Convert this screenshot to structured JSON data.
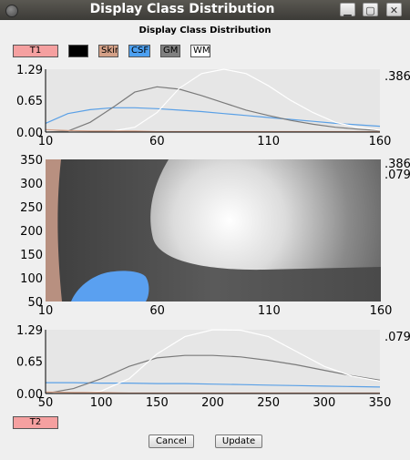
{
  "window": {
    "title": "Display Class Distribution"
  },
  "header": {
    "title": "Display Class Distribution"
  },
  "top_selector": {
    "label": "T1",
    "color": "#f5a0a0"
  },
  "bottom_selector": {
    "label": "T2",
    "color": "#f5a0a0"
  },
  "classes": [
    {
      "label": "",
      "color": "#000000"
    },
    {
      "label": "Skin",
      "color": "#d4a087"
    },
    {
      "label": "CSF",
      "color": "#4da0f0"
    },
    {
      "label": "GM",
      "color": "#808080"
    },
    {
      "label": "WM",
      "color": "#ffffff"
    }
  ],
  "buttons": {
    "cancel": "Cancel",
    "update": "Update"
  },
  "chart_data": [
    {
      "type": "line",
      "title": "",
      "x_ticks": [
        "10",
        "60",
        "110",
        "160"
      ],
      "y_ticks": [
        "0.00",
        "0.65",
        "1.29"
      ],
      "right_value": ".386",
      "xlim": [
        10,
        160
      ],
      "ylim": [
        0,
        1.29
      ],
      "series": [
        {
          "name": "CSF",
          "color": "#5aa0e6",
          "x": [
            10,
            20,
            30,
            40,
            50,
            60,
            70,
            80,
            90,
            100,
            110,
            120,
            130,
            140,
            150,
            160
          ],
          "y": [
            0.18,
            0.38,
            0.46,
            0.5,
            0.5,
            0.48,
            0.45,
            0.42,
            0.38,
            0.34,
            0.3,
            0.26,
            0.22,
            0.18,
            0.15,
            0.12
          ]
        },
        {
          "name": "GM",
          "color": "#7a7a7a",
          "x": [
            10,
            20,
            30,
            40,
            50,
            60,
            70,
            80,
            90,
            100,
            110,
            120,
            130,
            140,
            150,
            160
          ],
          "y": [
            0.0,
            0.02,
            0.2,
            0.5,
            0.82,
            0.93,
            0.88,
            0.75,
            0.6,
            0.45,
            0.34,
            0.24,
            0.16,
            0.1,
            0.06,
            0.03
          ]
        },
        {
          "name": "WM",
          "color": "#ffffff",
          "x": [
            10,
            20,
            30,
            40,
            50,
            60,
            70,
            80,
            90,
            100,
            110,
            120,
            130,
            140,
            150,
            160
          ],
          "y": [
            0.0,
            0.0,
            0.0,
            0.02,
            0.1,
            0.4,
            0.9,
            1.2,
            1.29,
            1.2,
            0.95,
            0.65,
            0.4,
            0.2,
            0.1,
            0.04
          ]
        },
        {
          "name": "Skin",
          "color": "#d4a087",
          "x": [
            10,
            20,
            30,
            40,
            50,
            60,
            70,
            80,
            90,
            100,
            110,
            120,
            130,
            140,
            150,
            160
          ],
          "y": [
            0.05,
            0.03,
            0.02,
            0.02,
            0.02,
            0.01,
            0.01,
            0.01,
            0.01,
            0.01,
            0.01,
            0.01,
            0.01,
            0.01,
            0.01,
            0.01
          ]
        }
      ]
    },
    {
      "type": "heatmap",
      "x_ticks": [
        "10",
        "60",
        "110",
        "160"
      ],
      "y_ticks": [
        "350",
        "300",
        "250",
        "200",
        "150",
        "100",
        "50"
      ],
      "right_values": [
        ".386",
        ".079"
      ],
      "xlim": [
        10,
        160
      ],
      "ylim": [
        50,
        350
      ]
    },
    {
      "type": "line",
      "x_ticks": [
        "50",
        "100",
        "150",
        "200",
        "250",
        "300",
        "350"
      ],
      "y_ticks": [
        "0.00",
        "0.65",
        "1.29"
      ],
      "right_value": ".079",
      "xlim": [
        50,
        350
      ],
      "ylim": [
        0,
        1.29
      ],
      "series": [
        {
          "name": "CSF",
          "color": "#5aa0e6",
          "x": [
            50,
            75,
            100,
            125,
            150,
            175,
            200,
            225,
            250,
            275,
            300,
            325,
            350
          ],
          "y": [
            0.22,
            0.22,
            0.21,
            0.21,
            0.2,
            0.2,
            0.19,
            0.18,
            0.17,
            0.16,
            0.15,
            0.14,
            0.13
          ]
        },
        {
          "name": "GM",
          "color": "#7a7a7a",
          "x": [
            50,
            75,
            100,
            125,
            150,
            175,
            200,
            225,
            250,
            275,
            300,
            325,
            350
          ],
          "y": [
            0.0,
            0.1,
            0.3,
            0.55,
            0.72,
            0.77,
            0.77,
            0.74,
            0.67,
            0.58,
            0.47,
            0.36,
            0.27
          ]
        },
        {
          "name": "WM",
          "color": "#ffffff",
          "x": [
            50,
            75,
            100,
            125,
            150,
            175,
            200,
            225,
            250,
            275,
            300,
            325,
            350
          ],
          "y": [
            0.0,
            0.0,
            0.05,
            0.3,
            0.8,
            1.15,
            1.29,
            1.28,
            1.15,
            0.85,
            0.55,
            0.35,
            0.25
          ]
        },
        {
          "name": "Skin",
          "color": "#d4a087",
          "x": [
            50,
            75,
            100,
            125,
            150,
            175,
            200,
            225,
            250,
            275,
            300,
            325,
            350
          ],
          "y": [
            0.03,
            0.02,
            0.02,
            0.01,
            0.01,
            0.01,
            0.01,
            0.01,
            0.01,
            0.01,
            0.01,
            0.01,
            0.01
          ]
        }
      ]
    }
  ]
}
